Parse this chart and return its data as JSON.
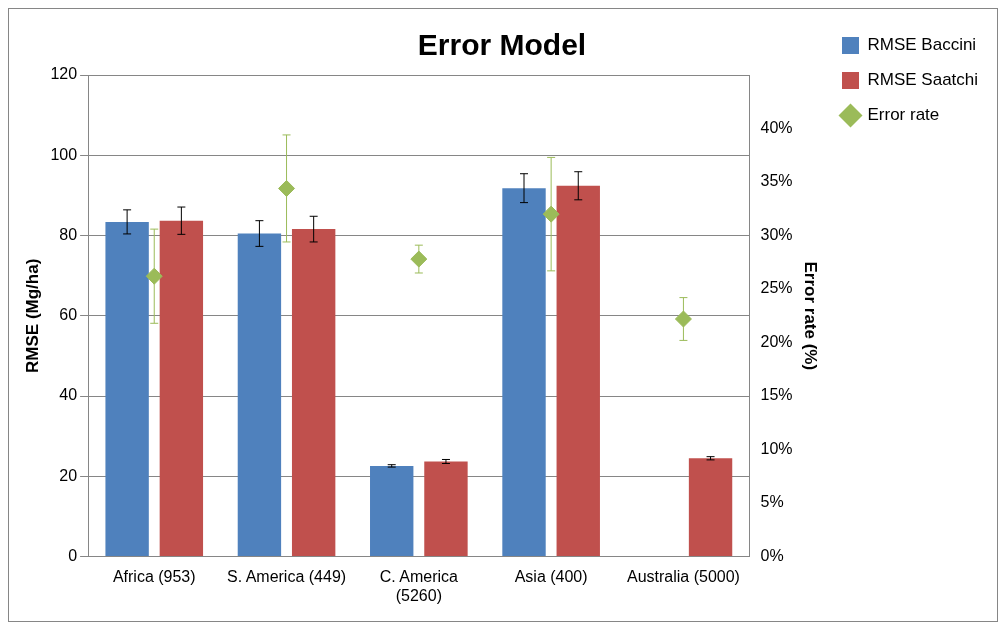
{
  "chart_data": {
    "type": "bar",
    "title": "Error Model",
    "ylabel": "RMSE (Mg/ha)",
    "y2label": "Error rate (%)",
    "categories": [
      "Africa (953)",
      "S. America (449)",
      "C. America (5260)",
      "Asia (400)",
      "Australia (5000)"
    ],
    "series": [
      {
        "name": "RMSE Baccini",
        "color": "#4f81bd",
        "values": [
          83.4,
          80.5,
          22.6,
          91.8,
          null
        ],
        "errors": [
          3,
          3.2,
          0.3,
          3.6,
          null
        ]
      },
      {
        "name": "RMSE Saatchi",
        "color": "#c0504d",
        "values": [
          83.7,
          81.6,
          23.7,
          92.4,
          24.5
        ],
        "errors": [
          3.4,
          3.2,
          0.5,
          3.5,
          0.4
        ]
      },
      {
        "name": "Error rate",
        "type": "scatter",
        "axis": "y2",
        "marker": "diamond",
        "color": "#9bbb59",
        "x": [
          "Africa (953)",
          "S. America (449)",
          "C. America (5260)",
          "Asia (400)",
          "Australia (5000)"
        ],
        "values": [
          26.2,
          34.4,
          27.8,
          32,
          22.2
        ],
        "errors": [
          4.4,
          5,
          1.3,
          5.3,
          2
        ]
      }
    ],
    "ylim": [
      0,
      120
    ],
    "yticks": [
      0,
      20,
      40,
      60,
      80,
      100,
      120
    ],
    "y2lim": [
      0,
      45
    ],
    "y2ticks": [
      {
        "value": 0,
        "label": "0%"
      },
      {
        "value": 5,
        "label": "5%"
      },
      {
        "value": 10,
        "label": "10%"
      },
      {
        "value": 15,
        "label": "15%"
      },
      {
        "value": 20,
        "label": "20%"
      },
      {
        "value": 25,
        "label": "25%"
      },
      {
        "value": 30,
        "label": "30%"
      },
      {
        "value": 35,
        "label": "35%"
      },
      {
        "value": 40,
        "label": "40%"
      }
    ],
    "grid": "y",
    "legend": "top right"
  }
}
